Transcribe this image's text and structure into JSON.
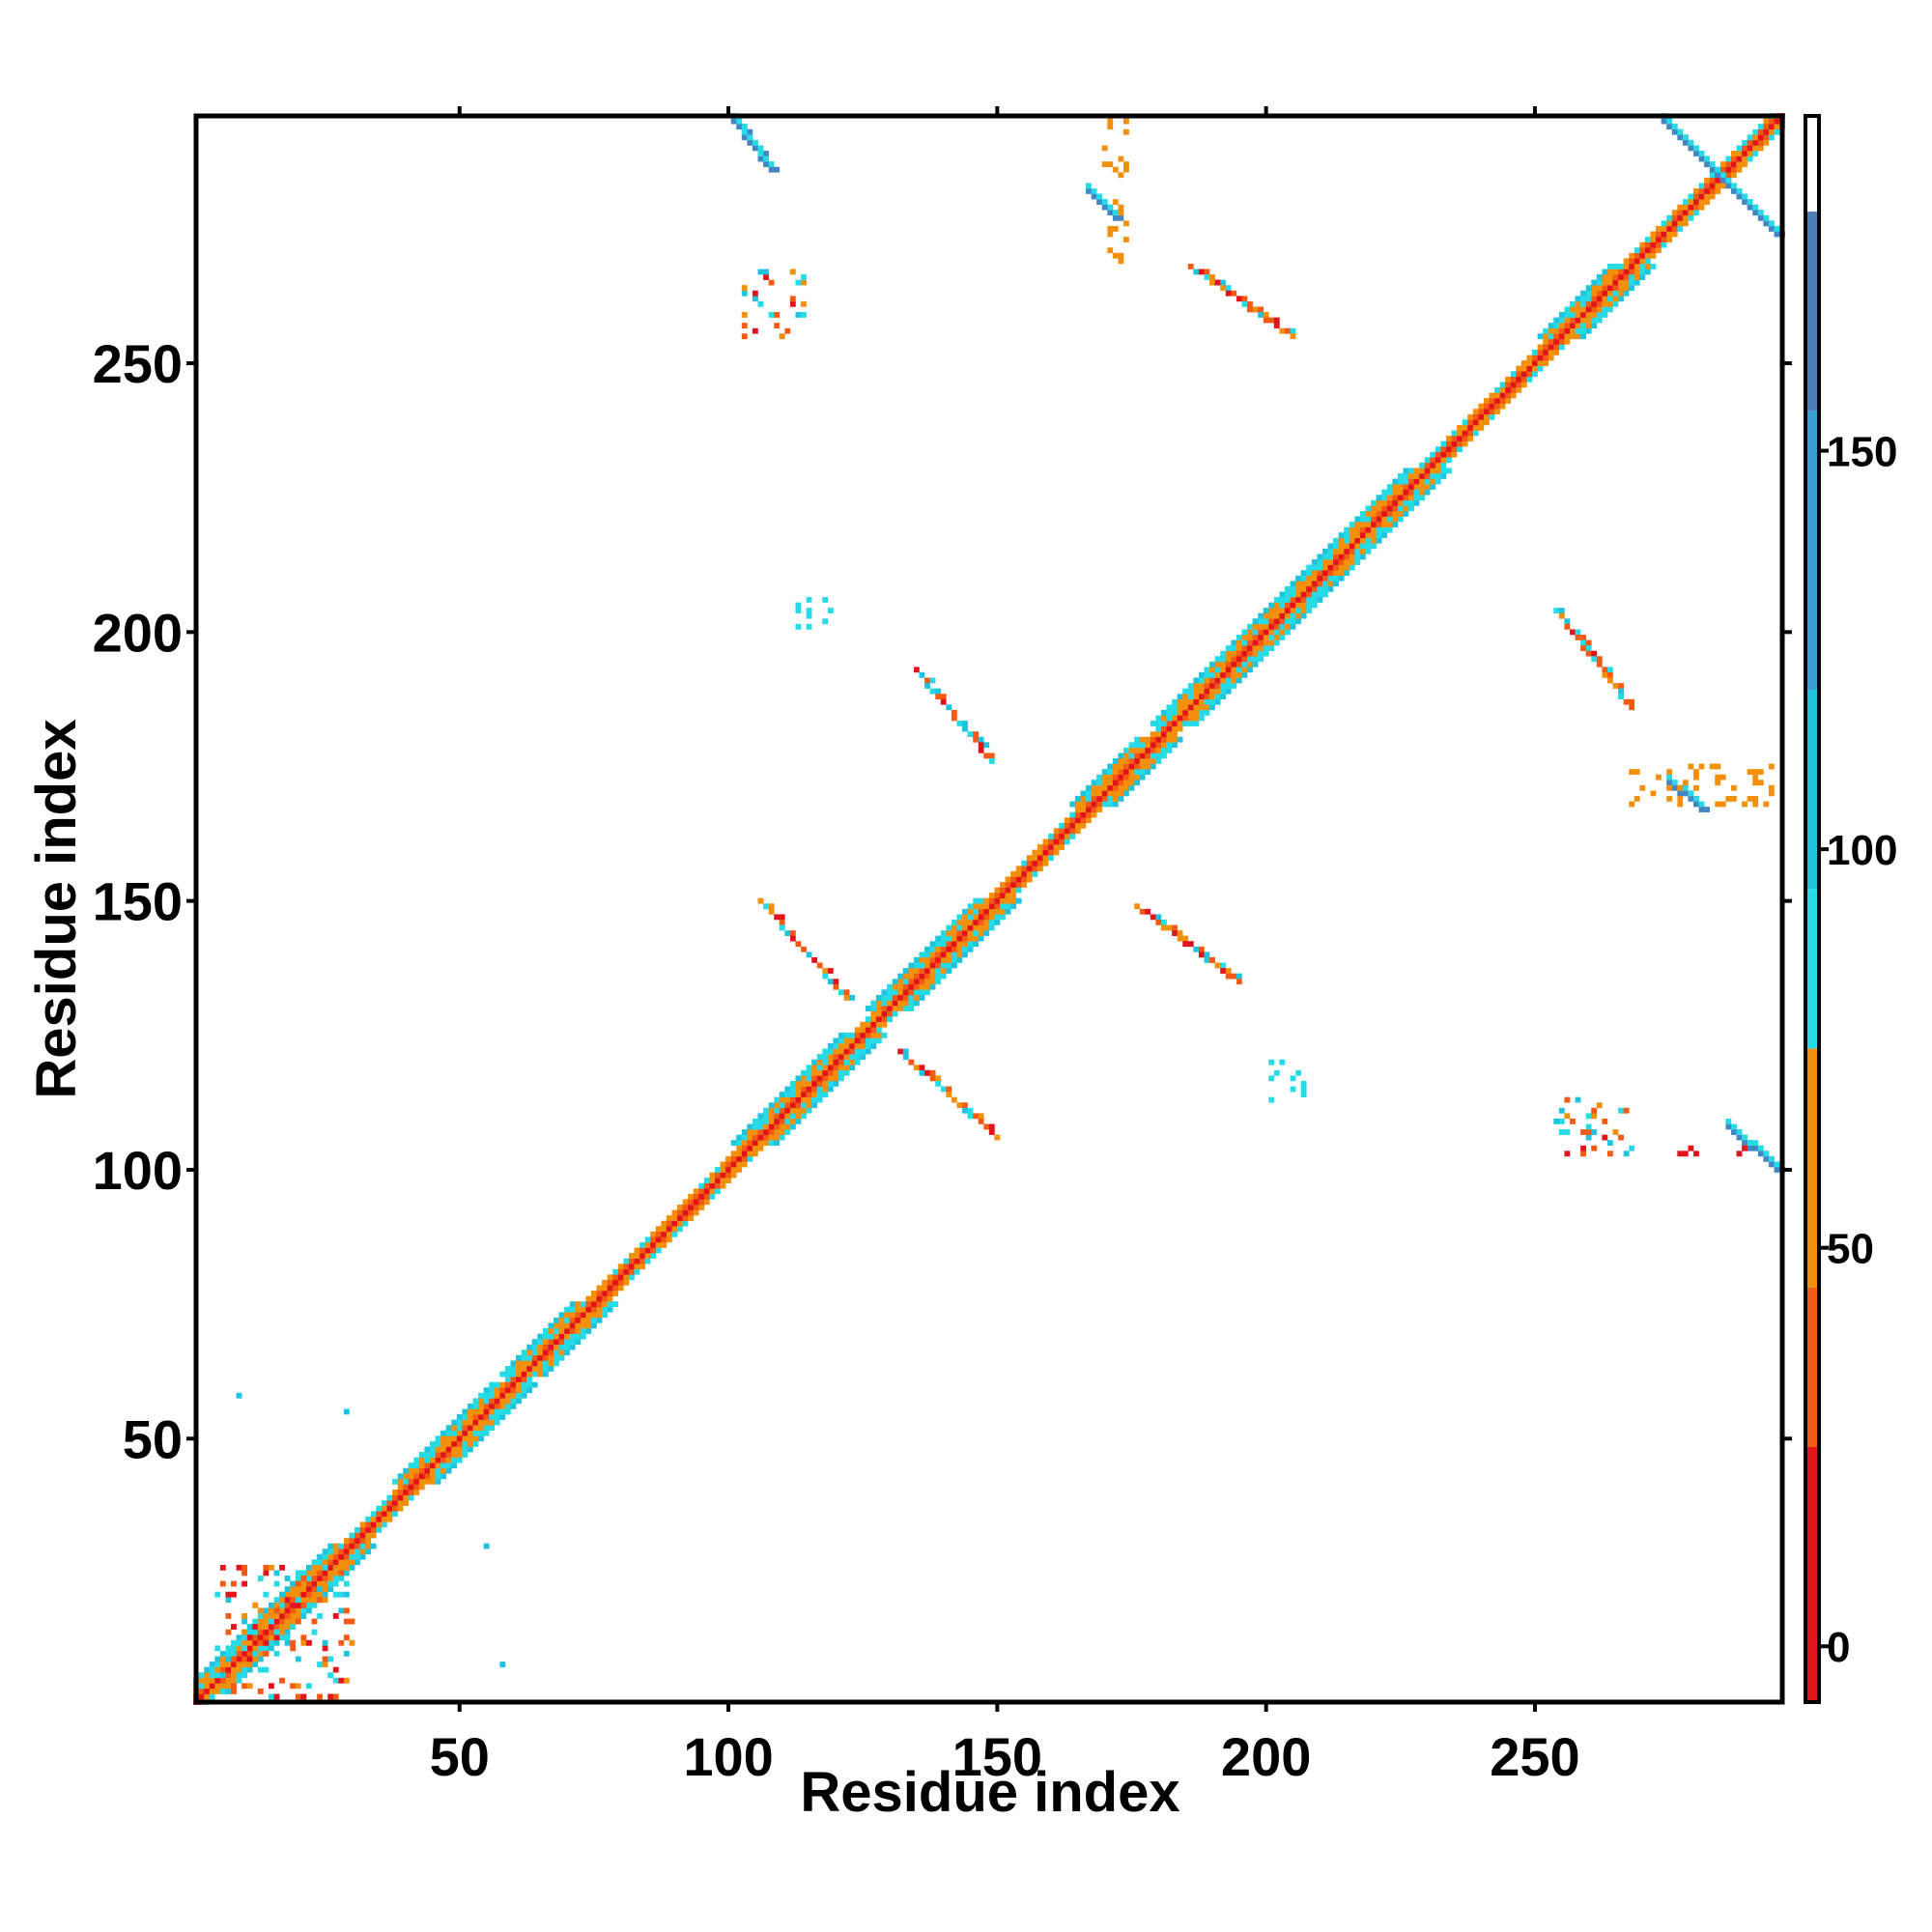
{
  "chart_data": {
    "type": "heatmap",
    "title": "",
    "xlabel": "Residue index",
    "ylabel": "Residue index",
    "xlim": [
      1,
      296
    ],
    "ylim": [
      1,
      296
    ],
    "x_ticks": [
      50,
      100,
      150,
      200,
      250
    ],
    "y_ticks": [
      50,
      100,
      150,
      200,
      250
    ],
    "colorbar": {
      "ticks": [
        0,
        50,
        100,
        150
      ],
      "range": [
        -7,
        192
      ],
      "bands": [
        {
          "from": -7,
          "to": 25,
          "color": "#e2141b"
        },
        {
          "from": 25,
          "to": 45,
          "color": "#f35a14"
        },
        {
          "from": 45,
          "to": 75,
          "color": "#f3900b"
        },
        {
          "from": 75,
          "to": 95,
          "color": "#27dbe6"
        },
        {
          "from": 95,
          "to": 120,
          "color": "#1fc3de"
        },
        {
          "from": 120,
          "to": 155,
          "color": "#3a9fd2"
        },
        {
          "from": 155,
          "to": 180,
          "color": "#4b7fb8"
        },
        {
          "from": 180,
          "to": 192,
          "color": "#ffffff"
        }
      ]
    },
    "palette": {
      "red": "#e2141b",
      "orange_red": "#f35a14",
      "orange": "#f3900b",
      "cyan": "#27dbe6",
      "teal": "#1fc3de",
      "steel_blue": "#4386c2"
    },
    "diagonal_band": {
      "x_range": [
        1,
        296
      ],
      "half_width": 4
    },
    "helix_segments": [
      [
        3,
        30
      ],
      [
        42,
        60
      ],
      [
        62,
        75
      ],
      [
        105,
        125
      ],
      [
        130,
        150
      ],
      [
        168,
        180
      ],
      [
        183,
        200
      ],
      [
        200,
        230
      ],
      [
        255,
        268
      ]
    ],
    "off_diagonal_features": [
      {
        "kind": "antiparallel",
        "x_range": [
          101,
          108
        ],
        "y_range": [
          286,
          295
        ],
        "color": "steel_blue"
      },
      {
        "kind": "antiparallel",
        "x_range": [
          167,
          172
        ],
        "y_range": [
          277,
          282
        ],
        "color": "steel_blue"
      },
      {
        "kind": "antiparallel",
        "x_range": [
          274,
          295
        ],
        "y_range": [
          274,
          295
        ],
        "color": "steel_blue"
      },
      {
        "kind": "antiparallel",
        "x_range": [
          275,
          281
        ],
        "y_range": [
          167,
          172
        ],
        "color": "steel_blue"
      },
      {
        "kind": "antiparallel",
        "x_range": [
          286,
          295
        ],
        "y_range": [
          100,
          108
        ],
        "color": "steel_blue"
      },
      {
        "kind": "antiparallel",
        "x_range": [
          106,
          122
        ],
        "y_range": [
          132,
          150
        ],
        "color": "mixed"
      },
      {
        "kind": "antiparallel",
        "x_range": [
          132,
          150
        ],
        "y_range": [
          106,
          122
        ],
        "color": "mixed"
      },
      {
        "kind": "antiparallel",
        "x_range": [
          186,
          205
        ],
        "y_range": [
          255,
          268
        ],
        "color": "mixed"
      },
      {
        "kind": "antiparallel",
        "x_range": [
          254,
          268
        ],
        "y_range": [
          186,
          204
        ],
        "color": "mixed"
      },
      {
        "kind": "antiparallel",
        "x_range": [
          176,
          195
        ],
        "y_range": [
          135,
          149
        ],
        "color": "mixed"
      },
      {
        "kind": "antiparallel",
        "x_range": [
          135,
          149
        ],
        "y_range": [
          176,
          193
        ],
        "color": "mixed"
      },
      {
        "kind": "cluster",
        "x_range": [
          103,
          115
        ],
        "y_range": [
          255,
          267
        ],
        "color": "mixed"
      },
      {
        "kind": "cluster",
        "x_range": [
          113,
          122
        ],
        "y_range": [
          201,
          206
        ],
        "color": "cyan"
      },
      {
        "kind": "cluster",
        "x_range": [
          201,
          207
        ],
        "y_range": [
          113,
          120
        ],
        "color": "cyan"
      },
      {
        "kind": "cluster",
        "x_range": [
          254,
          268
        ],
        "y_range": [
          103,
          113
        ],
        "color": "mixed"
      },
      {
        "kind": "cluster",
        "x_range": [
          270,
          293
        ],
        "y_range": [
          103,
          104
        ],
        "color": "red"
      },
      {
        "kind": "cluster",
        "x_range": [
          268,
          294
        ],
        "y_range": [
          168,
          175
        ],
        "color": "orange"
      },
      {
        "kind": "cluster",
        "x_range": [
          170,
          174
        ],
        "y_range": [
          266,
          295
        ],
        "color": "orange"
      },
      {
        "kind": "cluster",
        "x_range": [
          5,
          30
        ],
        "y_range": [
          2,
          26
        ],
        "color": "mixed"
      },
      {
        "kind": "point",
        "x": 9,
        "y": 58,
        "color": "teal"
      },
      {
        "kind": "point",
        "x": 29,
        "y": 55,
        "color": "teal"
      },
      {
        "kind": "point",
        "x": 55,
        "y": 30,
        "color": "teal"
      },
      {
        "kind": "point",
        "x": 58,
        "y": 8,
        "color": "teal"
      }
    ]
  }
}
